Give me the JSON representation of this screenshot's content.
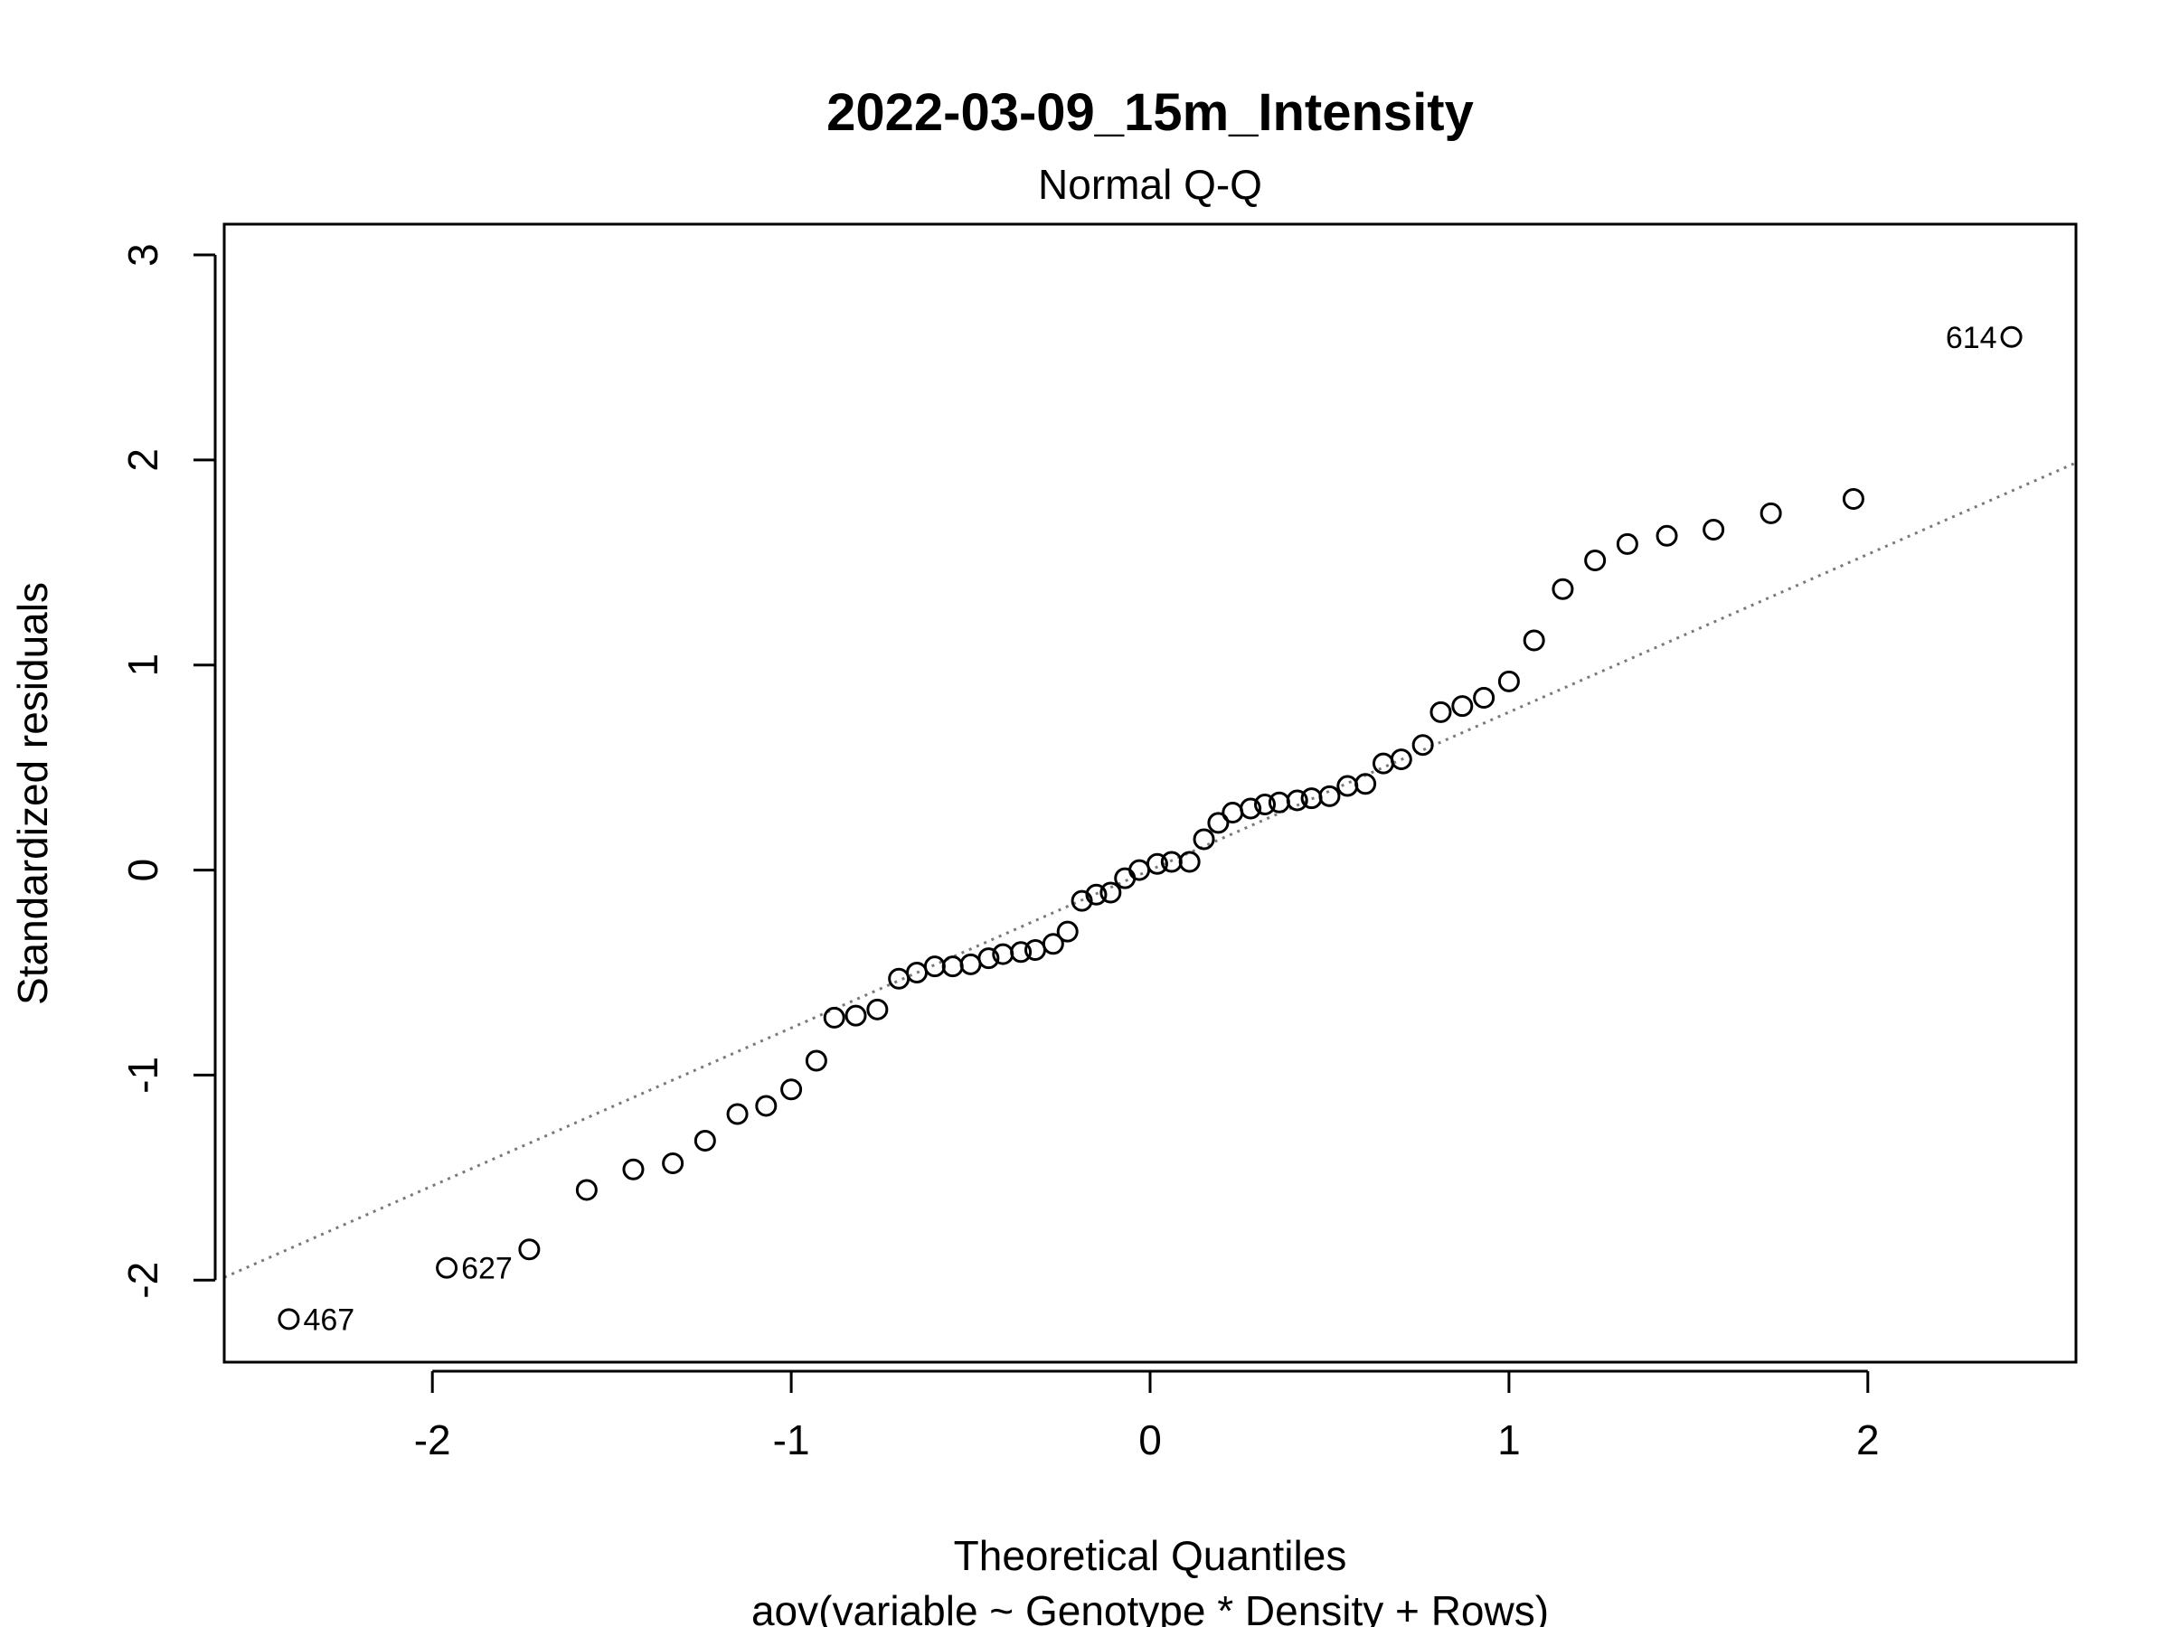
{
  "chart_data": {
    "type": "scatter",
    "title": "2022-03-09_15m_Intensity",
    "subtitle": "Normal Q-Q",
    "xlabel": "Theoretical Quantiles",
    "xlabel2": "aov(variable ~ Genotype * Density + Rows)",
    "ylabel": "Standardized residuals",
    "xlim": [
      -2.58,
      2.58
    ],
    "ylim": [
      -2.4,
      3.15
    ],
    "xticks": [
      -2,
      -1,
      0,
      1,
      2
    ],
    "yticks": [
      -2,
      -1,
      0,
      1,
      2,
      3
    ],
    "xtick_labels": [
      "-2",
      "-1",
      "0",
      "1",
      "2"
    ],
    "ytick_labels": [
      "-2",
      "-1",
      "0",
      "1",
      "2",
      "3"
    ],
    "grid": false,
    "reference_line": {
      "slope": 0.77,
      "intercept": 0.0,
      "style": "dotted",
      "color": "#7a7a7a"
    },
    "points": {
      "x": [
        -2.4,
        -1.96,
        -1.73,
        -1.57,
        -1.44,
        -1.33,
        -1.24,
        -1.15,
        -1.07,
        -1.0,
        -0.93,
        -0.88,
        -0.82,
        -0.76,
        -0.7,
        -0.65,
        -0.6,
        -0.55,
        -0.5,
        -0.45,
        -0.41,
        -0.36,
        -0.32,
        -0.27,
        -0.23,
        -0.19,
        -0.15,
        -0.11,
        -0.07,
        -0.03,
        0.02,
        0.06,
        0.11,
        0.15,
        0.19,
        0.23,
        0.28,
        0.32,
        0.36,
        0.41,
        0.45,
        0.5,
        0.55,
        0.6,
        0.65,
        0.7,
        0.76,
        0.81,
        0.87,
        0.93,
        1.0,
        1.07,
        1.15,
        1.24,
        1.33,
        1.44,
        1.57,
        1.73,
        1.96,
        2.4
      ],
      "y": [
        -2.19,
        -1.94,
        -1.85,
        -1.56,
        -1.46,
        -1.43,
        -1.32,
        -1.19,
        -1.15,
        -1.07,
        -0.93,
        -0.72,
        -0.71,
        -0.68,
        -0.53,
        -0.5,
        -0.47,
        -0.47,
        -0.46,
        -0.43,
        -0.41,
        -0.4,
        -0.39,
        -0.36,
        -0.3,
        -0.15,
        -0.12,
        -0.11,
        -0.04,
        0.0,
        0.03,
        0.04,
        0.04,
        0.15,
        0.23,
        0.28,
        0.3,
        0.32,
        0.33,
        0.34,
        0.35,
        0.36,
        0.41,
        0.42,
        0.52,
        0.54,
        0.61,
        0.77,
        0.8,
        0.84,
        0.92,
        1.12,
        1.37,
        1.51,
        1.59,
        1.63,
        1.66,
        1.74,
        1.81,
        2.6
      ]
    },
    "annotations": [
      {
        "label": "467",
        "x": -2.4,
        "y": -2.19,
        "side": "right"
      },
      {
        "label": "627",
        "x": -1.96,
        "y": -1.94,
        "side": "right"
      },
      {
        "label": "614",
        "x": 2.4,
        "y": 2.6,
        "side": "left"
      }
    ]
  }
}
